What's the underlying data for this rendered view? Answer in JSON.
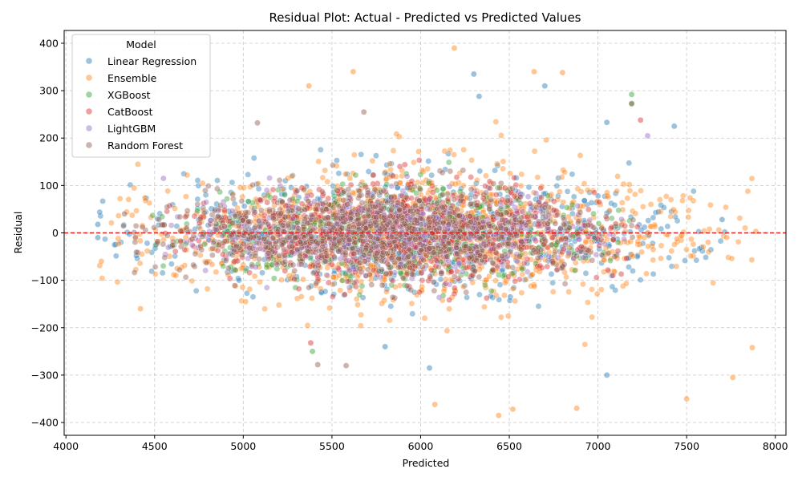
{
  "chart_data": {
    "type": "scatter",
    "title": "Residual Plot: Actual - Predicted vs Predicted Values",
    "xlabel": "Predicted",
    "ylabel": "Residual",
    "xlim": [
      3990,
      8060
    ],
    "ylim": [
      -427,
      427
    ],
    "xticks": [
      4000,
      4500,
      5000,
      5500,
      6000,
      6500,
      7000,
      7500,
      8000
    ],
    "yticks": [
      -400,
      -300,
      -200,
      -100,
      0,
      100,
      200,
      300,
      400
    ],
    "grid": true,
    "reference_line": {
      "y": 0,
      "color": "#d62728",
      "style": "dashed"
    },
    "legend": {
      "title": "Model",
      "placement": "top-left"
    },
    "series": [
      {
        "name": "Linear Regression",
        "color": "#1f77b4",
        "x_range": [
          4170,
          7720
        ],
        "spread": 85,
        "seed": 11,
        "count": 700,
        "highlights": [
          {
            "x": 6300,
            "y": 335
          },
          {
            "x": 6330,
            "y": 288
          },
          {
            "x": 6700,
            "y": 310
          },
          {
            "x": 7050,
            "y": 233
          },
          {
            "x": 7430,
            "y": 225
          },
          {
            "x": 7050,
            "y": -300
          },
          {
            "x": 6050,
            "y": -285
          },
          {
            "x": 4180,
            "y": 18
          },
          {
            "x": 4180,
            "y": -10
          },
          {
            "x": 5800,
            "y": -240
          },
          {
            "x": 7700,
            "y": 28
          }
        ]
      },
      {
        "name": "Ensemble",
        "color": "#ff7f0e",
        "x_range": [
          4190,
          7880
        ],
        "spread": 100,
        "seed": 23,
        "count": 1100,
        "highlights": [
          {
            "x": 6190,
            "y": 390
          },
          {
            "x": 5620,
            "y": 340
          },
          {
            "x": 6640,
            "y": 340
          },
          {
            "x": 6800,
            "y": 338
          },
          {
            "x": 5370,
            "y": 310
          },
          {
            "x": 6440,
            "y": -385
          },
          {
            "x": 6520,
            "y": -372
          },
          {
            "x": 6880,
            "y": -370
          },
          {
            "x": 6080,
            "y": -362
          },
          {
            "x": 7500,
            "y": -350
          },
          {
            "x": 7760,
            "y": -305
          },
          {
            "x": 7870,
            "y": -242
          },
          {
            "x": 4420,
            "y": -160
          },
          {
            "x": 7890,
            "y": 3
          },
          {
            "x": 4200,
            "y": -60
          }
        ]
      },
      {
        "name": "XGBoost",
        "color": "#2ca02c",
        "x_range": [
          4430,
          7210
        ],
        "spread": 72,
        "seed": 37,
        "count": 500,
        "highlights": [
          {
            "x": 7190,
            "y": 292
          },
          {
            "x": 7190,
            "y": 272
          },
          {
            "x": 5390,
            "y": -250
          }
        ]
      },
      {
        "name": "CatBoost",
        "color": "#d62728",
        "x_range": [
          4550,
          7230
        ],
        "spread": 68,
        "seed": 41,
        "count": 700,
        "highlights": [
          {
            "x": 7240,
            "y": 238
          },
          {
            "x": 5380,
            "y": -232
          }
        ]
      },
      {
        "name": "LightGBM",
        "color": "#9467bd",
        "x_range": [
          4540,
          7210
        ],
        "spread": 58,
        "seed": 53,
        "count": 500,
        "highlights": [
          {
            "x": 4550,
            "y": 115
          },
          {
            "x": 7280,
            "y": 205
          }
        ]
      },
      {
        "name": "Random Forest",
        "color": "#8c564b",
        "x_range": [
          4310,
          7220
        ],
        "spread": 62,
        "seed": 67,
        "count": 900,
        "highlights": [
          {
            "x": 5080,
            "y": 232
          },
          {
            "x": 5680,
            "y": 255
          },
          {
            "x": 7190,
            "y": 273
          },
          {
            "x": 5420,
            "y": -278
          },
          {
            "x": 5580,
            "y": -280
          },
          {
            "x": 4330,
            "y": 40
          }
        ]
      }
    ]
  }
}
